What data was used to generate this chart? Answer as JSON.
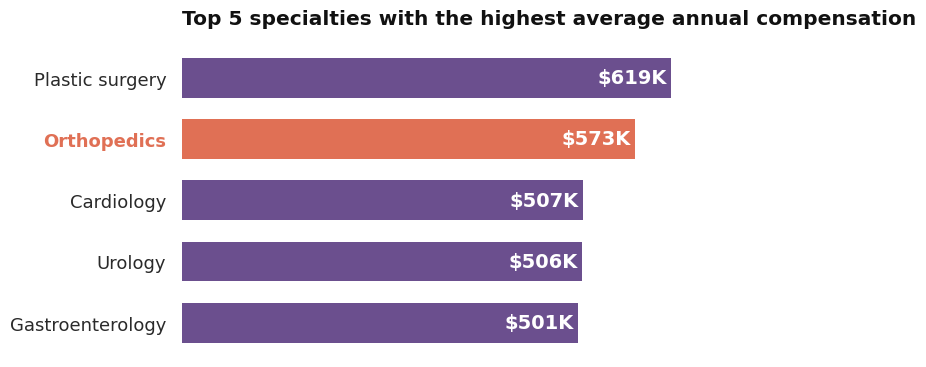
{
  "title": "Top 5 specialties with the highest average annual compensation",
  "categories": [
    "Plastic surgery",
    "Orthopedics",
    "Cardiology",
    "Urology",
    "Gastroenterology"
  ],
  "values": [
    619,
    573,
    507,
    506,
    501
  ],
  "labels": [
    "$619K",
    "$573K",
    "$507K",
    "$506K",
    "$501K"
  ],
  "bar_colors": [
    "#6b4f8e",
    "#e07055",
    "#6b4f8e",
    "#6b4f8e",
    "#6b4f8e"
  ],
  "highlight_index": 1,
  "highlight_label_color": "#e07055",
  "normal_label_color": "#2a2a2a",
  "bar_text_color": "#ffffff",
  "title_fontsize": 14.5,
  "label_fontsize": 13,
  "bar_label_fontsize": 14,
  "background_color": "#ffffff",
  "xlim": [
    0,
    750
  ]
}
